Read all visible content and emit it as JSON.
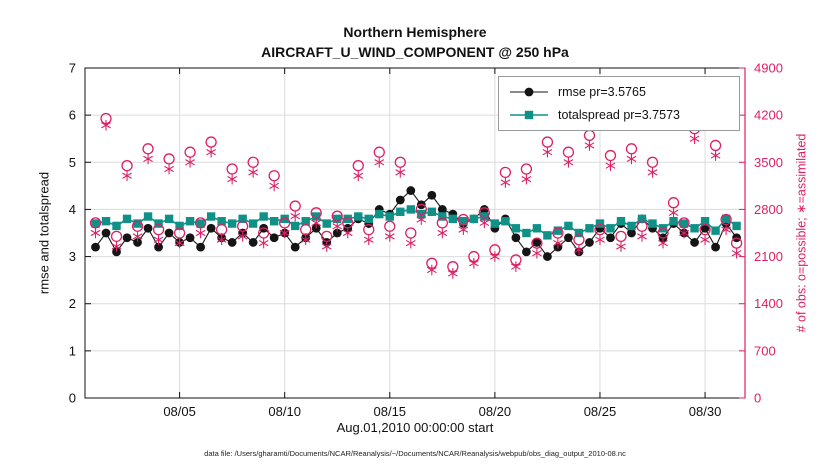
{
  "caption": "data file: /Users/gharamti/Documents/NCAR/Reanalysis/~/Documents/NCAR/Reanalysis/webpub/obs_diag_output_2010-08.nc",
  "chart_data": {
    "type": "line",
    "title1": "Northern Hemisphere",
    "title2": "AIRCRAFT_U_WIND_COMPONENT @ 250 hPa",
    "grid": true,
    "legend_position": "top-right-inside",
    "x_axis": {
      "label": "Aug.01,2010 00:00:00 start",
      "lim": [
        0.5,
        31.9
      ],
      "ticks": [
        5,
        10,
        15,
        20,
        25,
        30
      ],
      "tick_labels": [
        "08/05",
        "08/10",
        "08/15",
        "08/20",
        "08/25",
        "08/30"
      ]
    },
    "left_axis": {
      "label": "rmse and totalspread",
      "lim": [
        0,
        7
      ],
      "ticks": [
        0,
        1,
        2,
        3,
        4,
        5,
        6,
        7
      ],
      "color": "#111111"
    },
    "right_axis": {
      "label": "# of obs: o=possible; ∗=assimilated",
      "lim": [
        0,
        4900
      ],
      "ticks": [
        0,
        700,
        1400,
        2100,
        2800,
        3500,
        4200,
        4900
      ],
      "color": "#dd2065"
    },
    "x": [
      1,
      1.5,
      2,
      2.5,
      3,
      3.5,
      4,
      4.5,
      5,
      5.5,
      6,
      6.5,
      7,
      7.5,
      8,
      8.5,
      9,
      9.5,
      10,
      10.5,
      11,
      11.5,
      12,
      12.5,
      13,
      13.5,
      14,
      14.5,
      15,
      15.5,
      16,
      16.5,
      17,
      17.5,
      18,
      18.5,
      19,
      19.5,
      20,
      20.5,
      21,
      21.5,
      22,
      22.5,
      23,
      23.5,
      24,
      24.5,
      25,
      25.5,
      26,
      26.5,
      27,
      27.5,
      28,
      28.5,
      29,
      29.5,
      30,
      30.5,
      31,
      31.5
    ],
    "series": [
      {
        "id": "rmse",
        "name": "rmse pr=3.5765",
        "axis": "left",
        "color": "#151515",
        "marker": "circle",
        "line": true,
        "values": [
          3.2,
          3.5,
          3.1,
          3.4,
          3.3,
          3.6,
          3.2,
          3.5,
          3.3,
          3.4,
          3.2,
          3.6,
          3.4,
          3.3,
          3.5,
          3.3,
          3.6,
          3.4,
          3.5,
          3.2,
          3.4,
          3.6,
          3.3,
          3.5,
          3.6,
          3.8,
          3.7,
          4.0,
          3.9,
          4.2,
          4.4,
          4.1,
          4.3,
          4.0,
          3.9,
          3.7,
          3.8,
          4.0,
          3.6,
          3.8,
          3.4,
          3.1,
          3.3,
          3.0,
          3.2,
          3.4,
          3.1,
          3.3,
          3.6,
          3.4,
          3.7,
          3.5,
          3.8,
          3.6,
          3.4,
          3.7,
          3.5,
          3.3,
          3.6,
          3.2,
          3.7,
          3.4
        ]
      },
      {
        "id": "totalspread",
        "name": "totalspread pr=3.7573",
        "axis": "left",
        "color": "#0f9188",
        "marker": "square",
        "line": true,
        "values": [
          3.7,
          3.75,
          3.65,
          3.8,
          3.7,
          3.85,
          3.7,
          3.8,
          3.65,
          3.75,
          3.7,
          3.85,
          3.75,
          3.7,
          3.8,
          3.7,
          3.85,
          3.75,
          3.8,
          3.65,
          3.75,
          3.85,
          3.7,
          3.8,
          3.8,
          3.85,
          3.8,
          3.9,
          3.85,
          3.95,
          4.0,
          3.9,
          3.95,
          3.85,
          3.8,
          3.75,
          3.8,
          3.85,
          3.7,
          3.75,
          3.6,
          3.5,
          3.6,
          3.45,
          3.55,
          3.65,
          3.5,
          3.6,
          3.7,
          3.6,
          3.75,
          3.65,
          3.8,
          3.7,
          3.6,
          3.75,
          3.7,
          3.6,
          3.75,
          3.55,
          3.8,
          3.65
        ]
      },
      {
        "id": "possible",
        "name": "o=possible",
        "axis": "right",
        "color": "#dd2065",
        "marker": "open-circle",
        "line": false,
        "values": [
          2600,
          4150,
          2400,
          3450,
          2550,
          3700,
          2500,
          3550,
          2450,
          3650,
          2600,
          3800,
          2500,
          3400,
          2550,
          3500,
          2450,
          3300,
          2600,
          2850,
          2500,
          2750,
          2400,
          2700,
          2600,
          3450,
          2500,
          3650,
          2550,
          3500,
          2450,
          2800,
          2000,
          2600,
          1950,
          2650,
          2100,
          2750,
          2200,
          3350,
          2050,
          3400,
          2300,
          3800,
          2450,
          3650,
          2350,
          3900,
          2500,
          3600,
          2400,
          3700,
          2550,
          3500,
          2450,
          2900,
          2600,
          4000,
          2500,
          3750,
          2650,
          2300
        ]
      },
      {
        "id": "assimilated",
        "name": "∗=assimilated",
        "axis": "right",
        "color": "#dd2065",
        "marker": "asterisk",
        "line": false,
        "values": [
          2450,
          4050,
          2250,
          3300,
          2400,
          3550,
          2350,
          3400,
          2300,
          3500,
          2450,
          3650,
          2350,
          3250,
          2400,
          3350,
          2300,
          3150,
          2450,
          2700,
          2350,
          2600,
          2250,
          2550,
          2450,
          3300,
          2350,
          3500,
          2400,
          3350,
          2300,
          2650,
          1900,
          2450,
          1850,
          2500,
          2000,
          2600,
          2100,
          3200,
          1950,
          3250,
          2150,
          3650,
          2300,
          3500,
          2200,
          3750,
          2350,
          3450,
          2250,
          3550,
          2400,
          3350,
          2300,
          2750,
          2450,
          3850,
          2350,
          3600,
          2500,
          2150
        ]
      }
    ],
    "legend": [
      {
        "label": "rmse pr=3.5765"
      },
      {
        "label": "totalspread pr=3.7573"
      }
    ]
  }
}
